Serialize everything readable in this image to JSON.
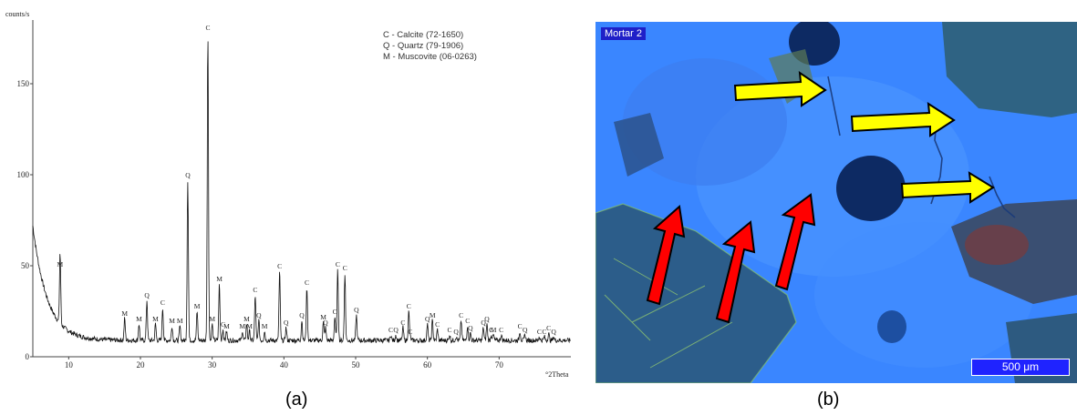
{
  "chart_data": {
    "type": "line",
    "ylabel": "counts/s",
    "xlabel": "°2Theta",
    "xlim": [
      5,
      80
    ],
    "ylim": [
      0,
      185
    ],
    "x_ticks": [
      "10",
      "20",
      "30",
      "40",
      "50",
      "60",
      "70"
    ],
    "x_tick_values": [
      10,
      20,
      30,
      40,
      50,
      60,
      70
    ],
    "y_ticks": [
      "0",
      "50",
      "100",
      "150"
    ],
    "y_tick_values": [
      0,
      50,
      100,
      150
    ],
    "legend": [
      "C - Calcite (72-1650)",
      "Q - Quartz (79-1906)",
      "M - Muscovite (06-0263)"
    ],
    "legend_position": "top-right",
    "background": {
      "y0": 72,
      "decay": 2.0,
      "base": 9
    },
    "peaks": [
      {
        "x": 8.8,
        "y": 48,
        "label": "M"
      },
      {
        "x": 17.8,
        "y": 21,
        "label": "M"
      },
      {
        "x": 19.8,
        "y": 18,
        "label": "M"
      },
      {
        "x": 20.9,
        "y": 31,
        "label": "Q"
      },
      {
        "x": 22.1,
        "y": 18,
        "label": "M"
      },
      {
        "x": 23.1,
        "y": 27,
        "label": "C"
      },
      {
        "x": 24.4,
        "y": 17,
        "label": "M"
      },
      {
        "x": 25.5,
        "y": 17,
        "label": "M"
      },
      {
        "x": 26.6,
        "y": 97,
        "label": "Q"
      },
      {
        "x": 27.9,
        "y": 25,
        "label": "M"
      },
      {
        "x": 29.4,
        "y": 178,
        "label": "C"
      },
      {
        "x": 30.0,
        "y": 18,
        "label": "M"
      },
      {
        "x": 31.0,
        "y": 40,
        "label": "M"
      },
      {
        "x": 31.5,
        "y": 15,
        "label": "C"
      },
      {
        "x": 32.0,
        "y": 14,
        "label": "M"
      },
      {
        "x": 34.2,
        "y": 14,
        "label": "M"
      },
      {
        "x": 34.8,
        "y": 18,
        "label": "M"
      },
      {
        "x": 35.2,
        "y": 14,
        "label": "M"
      },
      {
        "x": 36.0,
        "y": 34,
        "label": "C"
      },
      {
        "x": 36.5,
        "y": 20,
        "label": "Q"
      },
      {
        "x": 37.3,
        "y": 14,
        "label": "M"
      },
      {
        "x": 39.4,
        "y": 47,
        "label": "C"
      },
      {
        "x": 40.3,
        "y": 16,
        "label": "Q"
      },
      {
        "x": 42.5,
        "y": 20,
        "label": "Q"
      },
      {
        "x": 43.2,
        "y": 38,
        "label": "C"
      },
      {
        "x": 45.5,
        "y": 19,
        "label": "M"
      },
      {
        "x": 45.8,
        "y": 16,
        "label": "Q"
      },
      {
        "x": 47.1,
        "y": 22,
        "label": "C"
      },
      {
        "x": 47.5,
        "y": 48,
        "label": "C"
      },
      {
        "x": 48.5,
        "y": 46,
        "label": "C"
      },
      {
        "x": 50.1,
        "y": 23,
        "label": "Q"
      },
      {
        "x": 54.9,
        "y": 12,
        "label": "C"
      },
      {
        "x": 55.6,
        "y": 12,
        "label": "Q"
      },
      {
        "x": 56.6,
        "y": 16,
        "label": "C"
      },
      {
        "x": 57.4,
        "y": 25,
        "label": "C"
      },
      {
        "x": 57.6,
        "y": 11,
        "label": "C"
      },
      {
        "x": 60.0,
        "y": 18,
        "label": "Q"
      },
      {
        "x": 60.7,
        "y": 20,
        "label": "M"
      },
      {
        "x": 61.4,
        "y": 15,
        "label": "C"
      },
      {
        "x": 63.1,
        "y": 12,
        "label": "C"
      },
      {
        "x": 64.0,
        "y": 11,
        "label": "Q"
      },
      {
        "x": 64.7,
        "y": 20,
        "label": "C"
      },
      {
        "x": 65.6,
        "y": 17,
        "label": "C"
      },
      {
        "x": 66.0,
        "y": 13,
        "label": "Q"
      },
      {
        "x": 67.8,
        "y": 16,
        "label": "Q"
      },
      {
        "x": 68.3,
        "y": 18,
        "label": "Q"
      },
      {
        "x": 68.9,
        "y": 12,
        "label": "C"
      },
      {
        "x": 69.2,
        "y": 12,
        "label": "M"
      },
      {
        "x": 70.3,
        "y": 12,
        "label": "C"
      },
      {
        "x": 72.9,
        "y": 14,
        "label": "C"
      },
      {
        "x": 73.6,
        "y": 12,
        "label": "Q"
      },
      {
        "x": 75.6,
        "y": 11,
        "label": "C"
      },
      {
        "x": 76.3,
        "y": 11,
        "label": "C"
      },
      {
        "x": 76.9,
        "y": 13,
        "label": "C"
      },
      {
        "x": 77.6,
        "y": 11,
        "label": "Q"
      }
    ]
  },
  "captions": {
    "a": "(a)",
    "b": "(b)"
  },
  "micrograph": {
    "sample_label": "Mortar 2",
    "scale_bar_label": "500 μm",
    "yellow_arrow_count": 3,
    "red_arrow_count": 3,
    "colors": {
      "matrix": "#3a86ff",
      "yellow_arrow": "#ffff00",
      "red_arrow": "#ff0000"
    }
  }
}
